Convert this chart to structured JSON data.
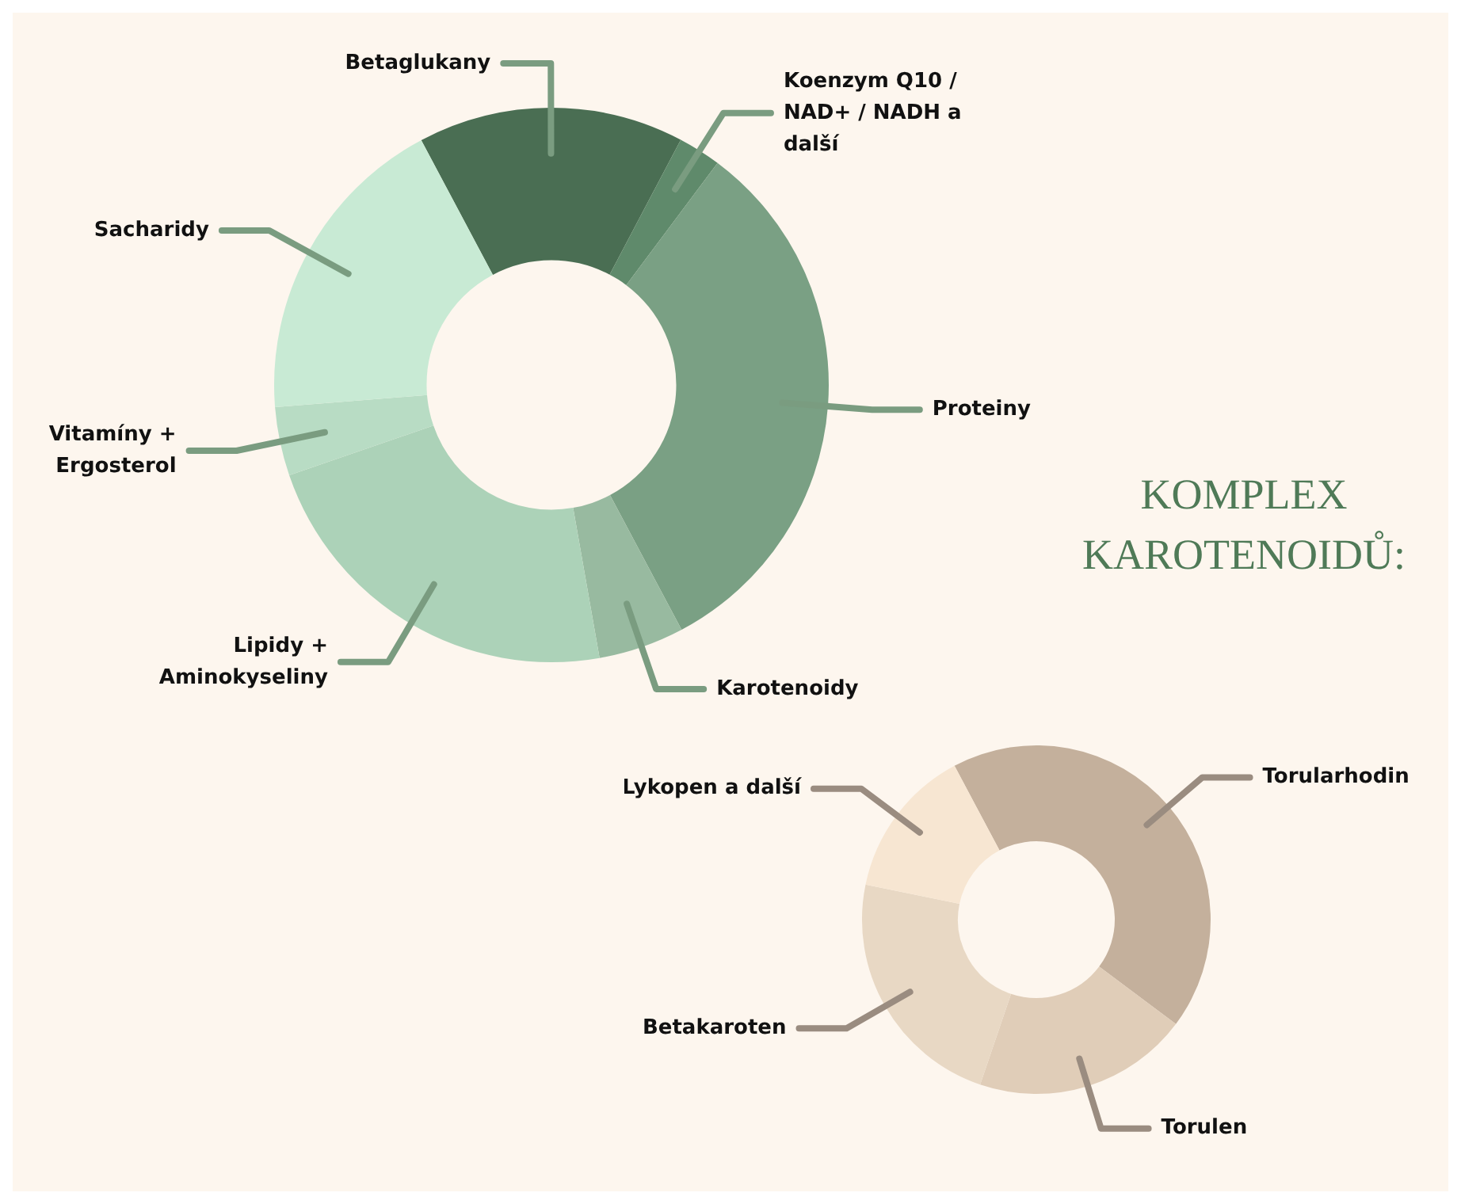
{
  "chart_data": [
    {
      "type": "donut",
      "categories": [
        "Betaglukany",
        "Koenzym Q10 / NAD+ / NADH a další",
        "Proteiny",
        "Karotenoidy",
        "Lipidy + Aminokyseliny",
        "Vitamíny + Ergosterol",
        "Sacharidy"
      ],
      "values": [
        15.5,
        2.5,
        32,
        5,
        22.5,
        4,
        18.5
      ],
      "colors": [
        "#4a6e53",
        "#5f8a6b",
        "#7aa084",
        "#98baa0",
        "#acd2b8",
        "#b8dcc4",
        "#c8ead4"
      ],
      "legend": false
    },
    {
      "type": "donut",
      "title": "KOMPLEX KAROTENOIDŮ:",
      "categories": [
        "Torularhodin",
        "Torulen",
        "Betakaroten",
        "Lykopen a další"
      ],
      "values": [
        43,
        20,
        23,
        14
      ],
      "colors": [
        "#c4b09c",
        "#e0cdb8",
        "#e8d8c4",
        "#f7e6d2"
      ],
      "legend": false
    }
  ]
}
